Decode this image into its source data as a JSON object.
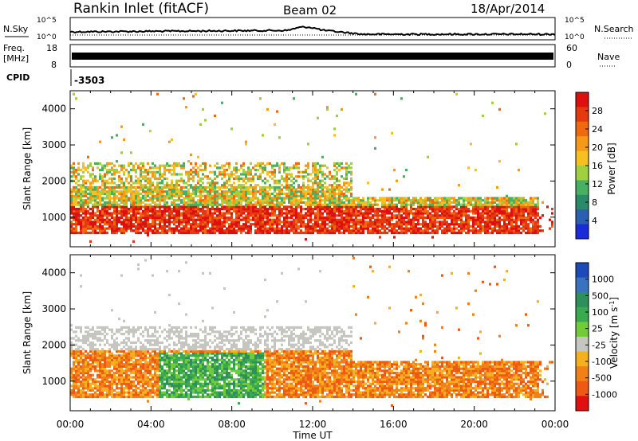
{
  "header": {
    "title": "Rankin Inlet (fitACF)",
    "beam": "Beam 02",
    "date": "18/Apr/2014"
  },
  "noise_panel": {
    "left_label": "N.Sky",
    "right_label": "N.Search",
    "ticks_top": "10^5",
    "ticks_bottom": "10^0"
  },
  "freq_panel": {
    "left_label_1": "Freq.",
    "left_label_2": "[MHz]",
    "left_tick_top": "18",
    "left_tick_bottom": "8",
    "right_label": "Nave",
    "right_tick_top": "60",
    "right_tick_bottom": "0"
  },
  "cpid_panel": {
    "label": "CPID",
    "value": "-3503"
  },
  "xaxis": {
    "label": "Time UT",
    "ticks": [
      "00:00",
      "04:00",
      "08:00",
      "12:00",
      "16:00",
      "20:00",
      "00:00"
    ]
  },
  "chart_data": [
    {
      "type": "heatmap",
      "ylabel": "Slant Range [km]",
      "yticks": [
        "1000",
        "2000",
        "3000",
        "4000"
      ],
      "colorbar_label": "Power [dB]",
      "colorbar_ticks": [
        "4",
        "8",
        "12",
        "16",
        "20",
        "24",
        "28"
      ],
      "colors": [
        "#1a2bd8",
        "#2b5fb0",
        "#2a8a6a",
        "#48b060",
        "#a0d040",
        "#f6c020",
        "#f59a18",
        "#ee6a10",
        "#e53a10",
        "#dd1010"
      ]
    },
    {
      "type": "heatmap",
      "ylabel": "Slant Range [km]",
      "yticks": [
        "1000",
        "2000",
        "3000",
        "4000"
      ],
      "colorbar_label": "Velocity [m s^-1]",
      "colorbar_ticks": [
        "1000",
        "500",
        "100",
        "25",
        "-25",
        "-100",
        "-500",
        "-1000"
      ],
      "colors": [
        "#1c4bb8",
        "#3a72c0",
        "#2f8f5a",
        "#3aaa50",
        "#72cc3a",
        "#c6c6c0",
        "#f5b020",
        "#f08018",
        "#ee5a14",
        "#e01010"
      ]
    }
  ]
}
